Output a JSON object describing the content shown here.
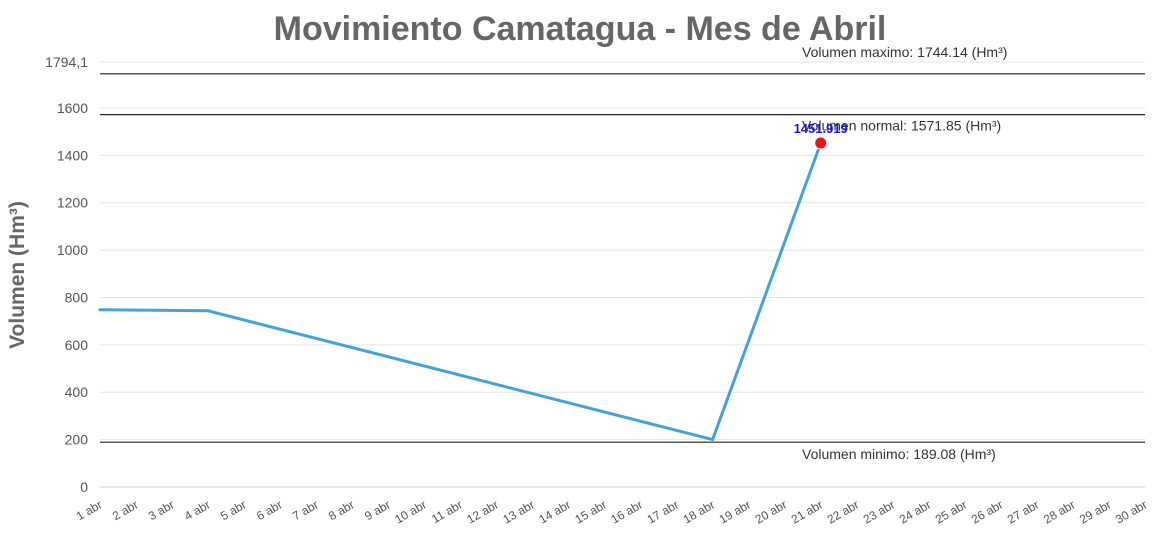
{
  "chart_data": {
    "type": "line",
    "title": "Movimiento Camatagua - Mes de Abril",
    "ylabel": "Volumen (Hm³)",
    "xlabel": "",
    "ylim": [
      0,
      1794.1
    ],
    "yticks": [
      0,
      200,
      400,
      600,
      800,
      1000,
      1200,
      1400,
      1600
    ],
    "ytick_labels": [
      "0",
      "200",
      "400",
      "600",
      "800",
      "1000",
      "1200",
      "1400",
      "1600"
    ],
    "ymax_label": "1794,1",
    "categories": [
      "1 abr",
      "2 abr",
      "3 abr",
      "4 abr",
      "5 abr",
      "6 abr",
      "7 abr",
      "8 abr",
      "9 abr",
      "10 abr",
      "11 abr",
      "12 abr",
      "13 abr",
      "14 abr",
      "15 abr",
      "16 abr",
      "17 abr",
      "18 abr",
      "19 abr",
      "20 abr",
      "21 abr",
      "22 abr",
      "23 abr",
      "24 abr",
      "25 abr",
      "26 abr",
      "27 abr",
      "28 abr",
      "29 abr",
      "30 abr"
    ],
    "series": [
      {
        "points": [
          {
            "x": "1 abr",
            "y": 748
          },
          {
            "x": "4 abr",
            "y": 744
          },
          {
            "x": "18 abr",
            "y": 200
          },
          {
            "x": "21 abr",
            "y": 1451.919
          }
        ],
        "color": "#45a1dc"
      }
    ],
    "highlight": {
      "x": "21 abr",
      "y": 1451.919,
      "label": "1451.919",
      "color": "#e8141c"
    },
    "reference_lines": [
      {
        "value": 1744.14,
        "label": "Volumen maximo: 1744.14 (Hm³)"
      },
      {
        "value": 1571.85,
        "label": "Volumen normal: 1571.85 (Hm³)"
      },
      {
        "value": 189.08,
        "label": "Volumen minimo: 189.08 (Hm³)"
      }
    ],
    "grid": true,
    "legend": "none"
  }
}
